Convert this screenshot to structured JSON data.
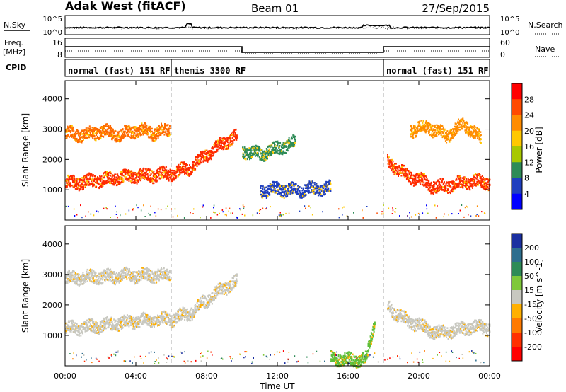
{
  "header": {
    "station": "Adak West (fitACF)",
    "beam": "Beam 01",
    "date": "27/Sep/2015"
  },
  "summary_panels": {
    "nsky_label": "N.Sky",
    "nsearch_label": "N.Search",
    "noise_ticks": [
      "10^5",
      "10^0"
    ],
    "freq_label_top": "Freq.",
    "freq_label_unit": "[MHz]",
    "freq_ticks": [
      "16",
      "8"
    ],
    "nave_label": "Nave",
    "nave_ticks": [
      "60",
      "0"
    ],
    "cpid_label": "CPID"
  },
  "cpid_segments": [
    {
      "name": "normal (fast) 151 RF",
      "start": 0,
      "end": 6
    },
    {
      "name": "themis 3300 RF",
      "start": 6,
      "end": 18
    },
    {
      "name": "normal (fast) 151 RF",
      "start": 18,
      "end": 24
    }
  ],
  "chart_data": [
    {
      "type": "heatmap",
      "panel": "power",
      "x_range_hours": [
        0,
        24
      ],
      "ylabel": "Slant Range [km]",
      "ylim": [
        0,
        4600
      ],
      "yticks": [
        1000,
        2000,
        3000,
        4000
      ],
      "xticks": [
        "00:00",
        "04:00",
        "08:00",
        "12:00",
        "16:00",
        "20:00",
        "00:00"
      ],
      "xlabel": "Time UT",
      "colorbar_label": "Power [dB]",
      "colorbar_ticks": [
        "28",
        "24",
        "20",
        "16",
        "12",
        "8",
        "4"
      ],
      "colorbar_colors": [
        "#ff0000",
        "#ff4a00",
        "#ff8c00",
        "#ffc800",
        "#a8c800",
        "#2e8b57",
        "#1f3fbf",
        "#0000ff"
      ],
      "scatter_bands": [
        {
          "name": "lower band",
          "t": [
            0,
            1,
            2,
            3,
            4,
            5,
            6,
            7,
            8,
            9,
            9.7
          ],
          "r": [
            1250,
            1280,
            1350,
            1420,
            1500,
            1520,
            1560,
            1750,
            2200,
            2600,
            2800
          ],
          "color": "#ff2a00"
        },
        {
          "name": "upper band",
          "t": [
            0,
            1,
            2,
            3,
            4,
            5,
            5.9
          ],
          "r": [
            2900,
            2830,
            2950,
            2850,
            3000,
            2920,
            3000
          ],
          "color": "#ff6a00"
        },
        {
          "name": "mid 10-13 UT",
          "t": [
            10,
            11,
            12,
            13
          ],
          "r": [
            2300,
            2200,
            2400,
            2600
          ],
          "color": "#2e8b57"
        },
        {
          "name": "blue 11-15 UT",
          "t": [
            11,
            12,
            13,
            14,
            15
          ],
          "r": [
            1000,
            1050,
            1000,
            1050,
            1080
          ],
          "color": "#1f3fbf"
        },
        {
          "name": "evening band",
          "t": [
            18.2,
            19,
            20,
            21,
            22,
            23,
            24
          ],
          "r": [
            2000,
            1600,
            1350,
            1100,
            1200,
            1300,
            1280
          ],
          "color": "#ff2a00"
        },
        {
          "name": "evening upper",
          "t": [
            19.5,
            20.5,
            21.5,
            22.5,
            23.5
          ],
          "r": [
            3000,
            3100,
            2800,
            3200,
            2700
          ],
          "color": "#ff8c00"
        }
      ]
    },
    {
      "type": "heatmap",
      "panel": "velocity",
      "x_range_hours": [
        0,
        24
      ],
      "ylabel": "Slant Range [km]",
      "ylim": [
        0,
        4600
      ],
      "yticks": [
        1000,
        2000,
        3000,
        4000
      ],
      "xticks": [
        "00:00",
        "04:00",
        "08:00",
        "12:00",
        "16:00",
        "20:00",
        "00:00"
      ],
      "xlabel": "Time UT",
      "colorbar_label": "Velocity [m s^-1]",
      "colorbar_ticks": [
        "200",
        "100",
        "50",
        "15",
        "-15",
        "-50",
        "-100",
        "-200"
      ],
      "colorbar_colors": [
        "#1a2fa0",
        "#2e6e8e",
        "#2e8b57",
        "#7fc83a",
        "#c8c8c0",
        "#ffb000",
        "#ff7a00",
        "#ff3000",
        "#ff0000"
      ],
      "scatter_bands": [
        {
          "name": "ground scatter lower",
          "t": [
            0,
            2,
            4,
            6,
            7,
            8,
            9,
            9.7
          ],
          "r": [
            1250,
            1350,
            1500,
            1560,
            1750,
            2200,
            2600,
            2800
          ],
          "color": "#c8c8c0"
        },
        {
          "name": "ground scatter upper",
          "t": [
            0,
            2,
            4,
            5.9
          ],
          "r": [
            2900,
            2950,
            3000,
            3000
          ],
          "color": "#c8c8c0"
        },
        {
          "name": "evening lower",
          "t": [
            18.2,
            19,
            20,
            21,
            22,
            23,
            24
          ],
          "r": [
            2000,
            1600,
            1350,
            1100,
            1200,
            1300,
            1280
          ],
          "color": "#c8c8c0"
        },
        {
          "name": "green 16-17 UT",
          "t": [
            15,
            16,
            17,
            17.5
          ],
          "r": [
            300,
            200,
            250,
            1500
          ],
          "color": "#5cbf3a"
        }
      ]
    }
  ]
}
